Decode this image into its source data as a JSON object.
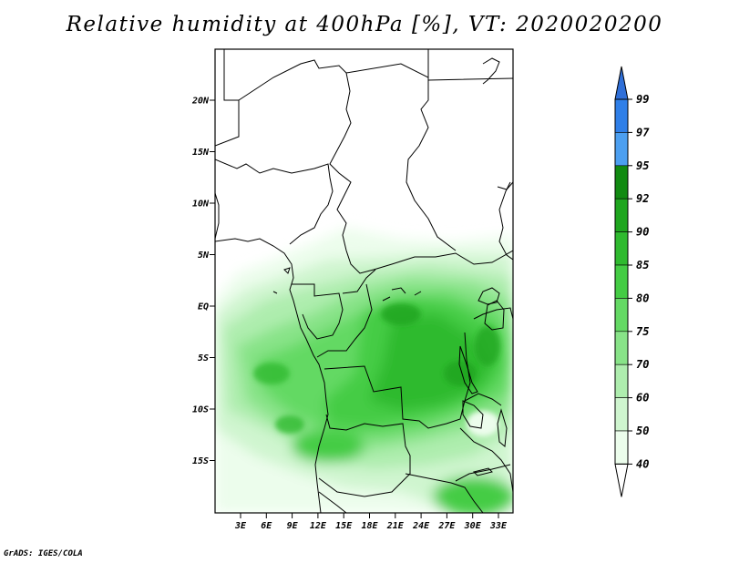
{
  "title": "Relative humidity at 400hPa [%], VT: 2020020200",
  "credit": "GrADS: IGES/COLA",
  "map": {
    "latitude_labels": [
      "20N",
      "15N",
      "10N",
      "5N",
      "EQ",
      "5S",
      "10S",
      "15S"
    ],
    "longitude_labels": [
      "3E",
      "6E",
      "9E",
      "12E",
      "15E",
      "18E",
      "21E",
      "24E",
      "27E",
      "30E",
      "33E"
    ]
  },
  "colorbar": {
    "tick_labels": [
      "99",
      "97",
      "95",
      "92",
      "90",
      "85",
      "80",
      "75",
      "70",
      "60",
      "50",
      "40"
    ],
    "colors": {
      "above_99": "#2f6fd8",
      "97_99": "#2f7fe8",
      "95_97": "#4c9ff0",
      "92_95": "#118a11",
      "90_92": "#1fa61f",
      "85_90": "#2fba2f",
      "80_85": "#44cc44",
      "75_80": "#64d964",
      "70_75": "#88e388",
      "60_70": "#aeedae",
      "50_60": "#cff5cf",
      "40_50": "#ecfdec",
      "below_40": "#ffffff"
    }
  }
}
